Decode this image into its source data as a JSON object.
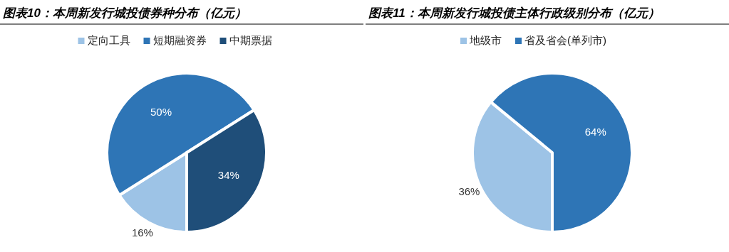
{
  "chart_data": [
    {
      "type": "pie",
      "title": "图表10：本周新发行城投债券种分布（亿元）",
      "categories": [
        "定向工具",
        "短期融资券",
        "中期票据"
      ],
      "values": [
        16,
        50,
        34
      ],
      "colors": [
        "#9dc3e6",
        "#2e75b6",
        "#1f4e79"
      ],
      "value_labels": [
        "16%",
        "50%",
        "34%"
      ],
      "legend": "top"
    },
    {
      "type": "pie",
      "title": "图表11：本周新发行城投债主体行政级别分布（亿元）",
      "categories": [
        "地级市",
        "省及省会(单列市)"
      ],
      "values": [
        36,
        64
      ],
      "colors": [
        "#9dc3e6",
        "#2e75b6"
      ],
      "value_labels": [
        "36%",
        "64%"
      ],
      "legend": "top"
    }
  ]
}
